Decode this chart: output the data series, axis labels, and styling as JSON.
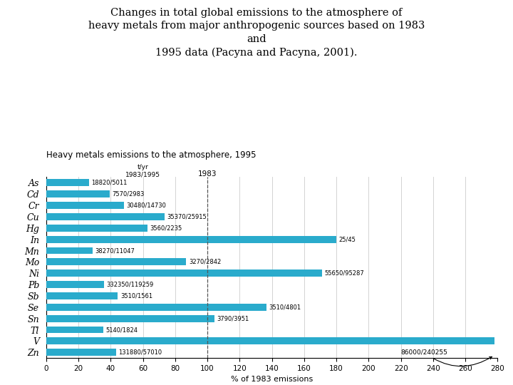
{
  "title_main": "Changes in total global emissions to the atmosphere of\nheavy metals from major anthropogenic sources based on 1983\nand\n1995 data (Pacyna and Pacyna, 2001).",
  "chart_title": "Heavy metals emissions to the atmosphere, 1995",
  "xlabel": "% of 1983 emissions",
  "elements": [
    "As",
    "Cd",
    "Cr",
    "Cu",
    "Hg",
    "In",
    "Mn",
    "Mo",
    "Ni",
    "Pb",
    "Sb",
    "Se",
    "Sn",
    "Tl",
    "V",
    "Zn"
  ],
  "bar_percents": [
    26.6,
    39.4,
    48.3,
    73.3,
    62.8,
    180.0,
    28.9,
    86.9,
    171.2,
    35.9,
    44.5,
    136.8,
    104.2,
    35.5,
    278.0,
    43.2
  ],
  "labels": [
    "18820/5011",
    "7570/2983",
    "30480/14730",
    "35370/25915",
    "3560/2235",
    "25/45",
    "38270/11047",
    "3270/2842",
    "55650/95287",
    "332350/119259",
    "3510/1561",
    "3510/4801",
    "3790/3951",
    "5140/1824",
    null,
    "131880/57010"
  ],
  "bar_color": "#2aabcc",
  "bg_color": "#ffffff",
  "grid_color": "#cccccc",
  "xlim": [
    0,
    280
  ],
  "xticks": [
    0,
    20,
    40,
    60,
    80,
    100,
    120,
    140,
    160,
    180,
    200,
    220,
    240,
    260,
    280
  ],
  "zn_annotation_text": "86000/240255"
}
